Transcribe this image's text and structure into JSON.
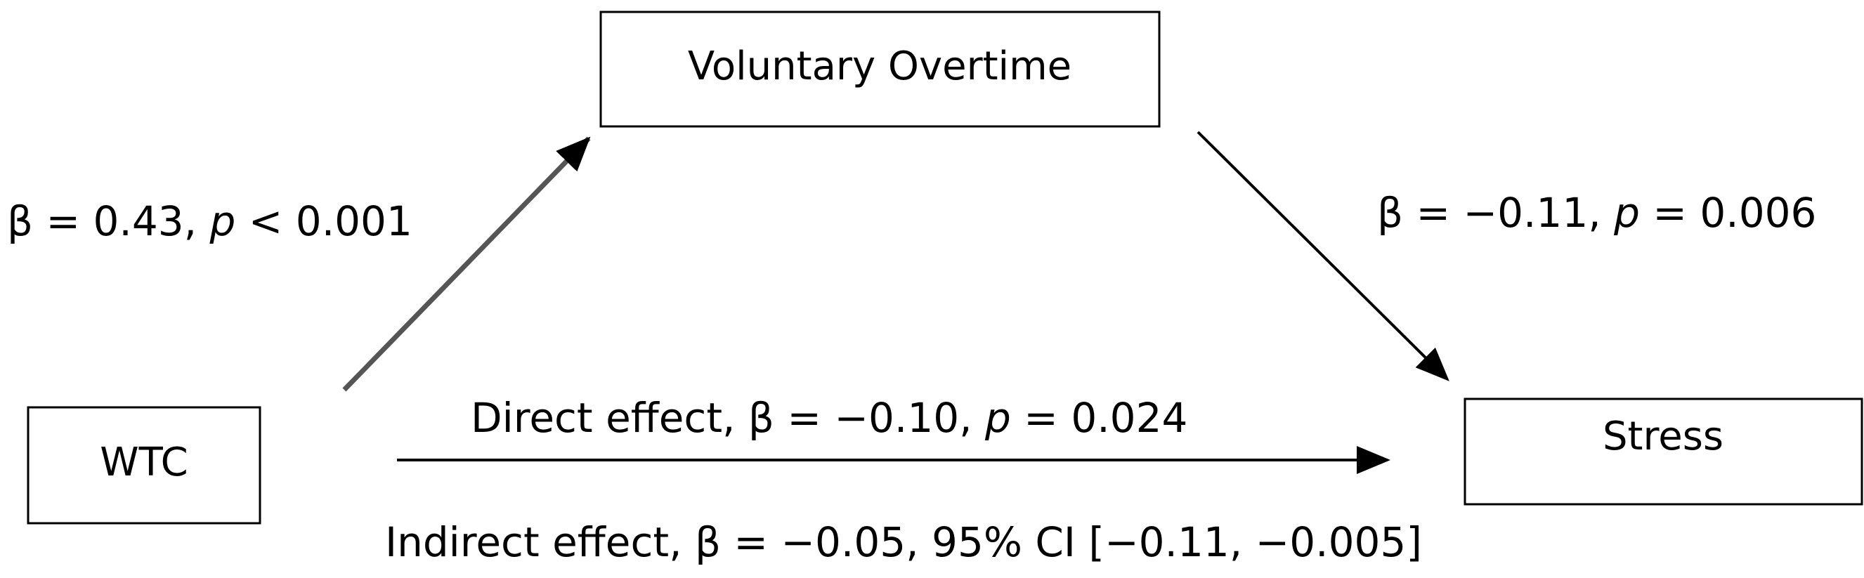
{
  "nodes": {
    "mediator": {
      "label": "Voluntary Overtime"
    },
    "predictor": {
      "label": "WTC"
    },
    "outcome": {
      "label": "Stress"
    }
  },
  "paths": {
    "a": {
      "prefix": "β = 0.43, ",
      "p_symbol": "p",
      "suffix": " < 0.001"
    },
    "b": {
      "prefix": "β = −0.11, ",
      "p_symbol": "p",
      "suffix": " = 0.006"
    },
    "direct": {
      "prefix": "Direct effect, β = −0.10, ",
      "p_symbol": "p",
      "suffix": " = 0.024"
    },
    "indirect": {
      "text": "Indirect effect, β = −0.05, 95% CI [−0.11, −0.005]"
    }
  },
  "colors": {
    "stroke": "#000000",
    "background": "#ffffff"
  }
}
